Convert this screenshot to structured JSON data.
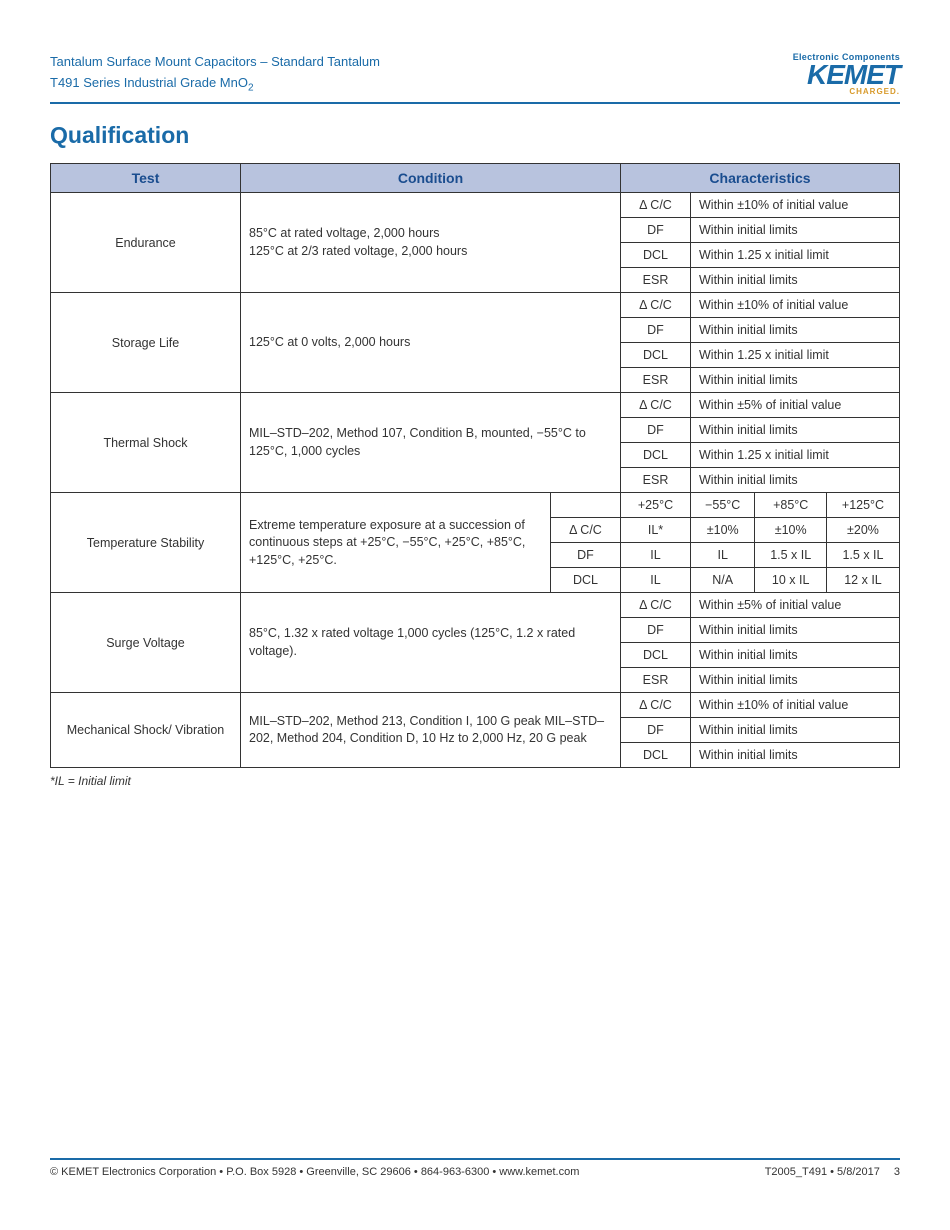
{
  "header": {
    "line1": "Tantalum Surface Mount Capacitors – Standard Tantalum",
    "line2_a": "T491 Series Industrial Grade MnO",
    "line2_sub": "2",
    "logo_tag": "Electronic Components",
    "logo_name": "KEMET",
    "logo_charged": "CHARGED."
  },
  "section_title": "Qualification",
  "columns": {
    "test": "Test",
    "condition": "Condition",
    "char": "Characteristics"
  },
  "rows": [
    {
      "test": "Endurance",
      "condition": "85°C at rated voltage, 2,000 hours\n125°C at 2/3 rated voltage, 2,000 hours",
      "chars": [
        [
          "Δ C/C",
          "Within ±10% of initial value"
        ],
        [
          "DF",
          "Within initial limits"
        ],
        [
          "DCL",
          "Within 1.25 x initial limit"
        ],
        [
          "ESR",
          "Within initial limits"
        ]
      ]
    },
    {
      "test": "Storage Life",
      "condition": "125°C at 0 volts, 2,000 hours",
      "chars": [
        [
          "Δ C/C",
          "Within ±10% of initial value"
        ],
        [
          "DF",
          "Within initial limits"
        ],
        [
          "DCL",
          "Within 1.25 x initial limit"
        ],
        [
          "ESR",
          "Within initial limits"
        ]
      ]
    },
    {
      "test": "Thermal Shock",
      "condition": "MIL–STD–202, Method 107, Condition B, mounted, −55°C to 125°C, 1,000 cycles",
      "chars": [
        [
          "Δ C/C",
          "Within ±5% of initial value"
        ],
        [
          "DF",
          "Within initial limits"
        ],
        [
          "DCL",
          "Within 1.25 x initial limit"
        ],
        [
          "ESR",
          "Within initial limits"
        ]
      ]
    },
    {
      "test": "Temperature Stability",
      "condition": "Extreme temperature exposure at a succession of continuous steps at +25°C, −55°C, +25°C, +85°C, +125°C, +25°C.",
      "header_row": [
        "",
        "+25°C",
        "−55°C",
        "+85°C",
        "+125°C"
      ],
      "matrix": [
        [
          "Δ C/C",
          "IL*",
          "±10%",
          "±10%",
          "±20%"
        ],
        [
          "DF",
          "IL",
          "IL",
          "1.5 x IL",
          "1.5 x IL"
        ],
        [
          "DCL",
          "IL",
          "N/A",
          "10 x IL",
          "12 x IL"
        ]
      ]
    },
    {
      "test": "Surge Voltage",
      "condition": "85°C, 1.32 x rated voltage 1,000 cycles (125°C, 1.2 x rated voltage).",
      "chars": [
        [
          "Δ C/C",
          "Within ±5% of initial value"
        ],
        [
          "DF",
          "Within initial limits"
        ],
        [
          "DCL",
          "Within initial limits"
        ],
        [
          "ESR",
          "Within initial limits"
        ]
      ]
    },
    {
      "test": "Mechanical Shock/ Vibration",
      "condition": "MIL–STD–202, Method 213, Condition I, 100 G peak MIL–STD–202, Method 204, Condition D, 10 Hz to 2,000 Hz, 20 G peak",
      "chars": [
        [
          "Δ C/C",
          "Within ±10% of initial value"
        ],
        [
          "DF",
          "Within initial limits"
        ],
        [
          "DCL",
          "Within initial limits"
        ]
      ]
    }
  ],
  "footnote": "*IL = Initial limit",
  "footer": {
    "left": "© KEMET Electronics Corporation • P.O. Box 5928 • Greenville, SC 29606 • 864-963-6300 • www.kemet.com",
    "doc": "T2005_T491 • 5/8/2017",
    "page": "3"
  },
  "style": {
    "brand_color": "#1a6ba8",
    "header_bg": "#b8c3de",
    "accent_color": "#d89a2b",
    "border_color": "#333333",
    "body_font_size": 12.5,
    "title_font_size": 23
  }
}
